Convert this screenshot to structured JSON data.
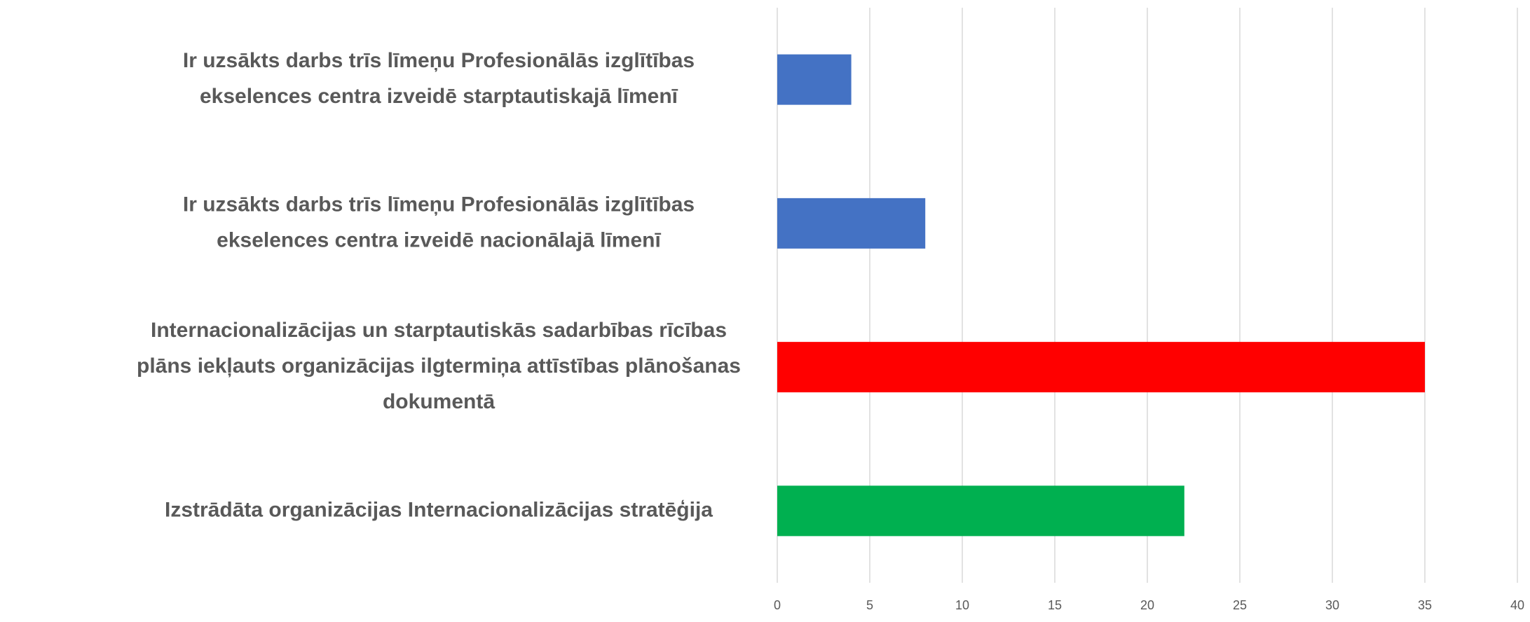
{
  "chart_data": {
    "type": "bar",
    "orientation": "horizontal",
    "categories": [
      [
        "Ir uzsākts darbs trīs līmeņu Profesionālās izglītības",
        "ekselences centra izveidē starptautiskajā līmenī"
      ],
      [
        "Ir uzsākts darbs trīs līmeņu Profesionālās izglītības",
        "ekselences centra izveidē nacionālajā līmenī"
      ],
      [
        "Internacionalizācijas un starptautiskās sadarbības rīcības",
        "plāns iekļauts organizācijas ilgtermiņa attīstības plānošanas",
        "dokumentā"
      ],
      [
        "Izstrādāta organizācijas Internacionalizācijas stratēģija"
      ]
    ],
    "values": [
      4,
      8,
      35,
      22
    ],
    "colors": [
      "#4472c4",
      "#4472c4",
      "#ff0000",
      "#00b050"
    ],
    "xlim": [
      0,
      40
    ],
    "xticks": [
      0,
      5,
      10,
      15,
      20,
      25,
      30,
      35,
      40
    ],
    "grid": true
  }
}
